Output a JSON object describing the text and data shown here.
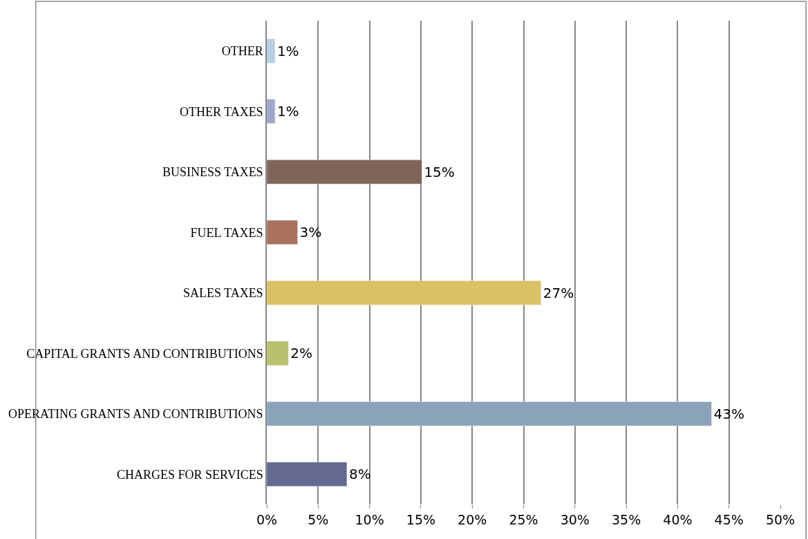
{
  "chart_data": {
    "type": "bar",
    "orientation": "horizontal",
    "categories": [
      "OTHER",
      "OTHER TAXES",
      "BUSINESS TAXES",
      "FUEL TAXES",
      "SALES TAXES",
      "CAPITAL GRANTS AND CONTRIBUTIONS",
      "OPERATING GRANTS AND CONTRIBUTIONS",
      "CHARGES FOR SERVICES"
    ],
    "values": [
      0.8,
      0.8,
      15.1,
      3.0,
      26.7,
      2.1,
      43.3,
      7.8
    ],
    "value_labels": [
      "1%",
      "1%",
      "15%",
      "3%",
      "27%",
      "2%",
      "43%",
      "8%"
    ],
    "colors": [
      "#b9cde5",
      "#a0a7c8",
      "#7f6459",
      "#a8725f",
      "#dcc066",
      "#b8c16b",
      "#8ba3b8",
      "#646a92"
    ],
    "xlim": [
      0,
      50
    ],
    "xticks": [
      {
        "value": 0,
        "label": "0%"
      },
      {
        "value": 5,
        "label": "5%"
      },
      {
        "value": 10,
        "label": "10%"
      },
      {
        "value": 15,
        "label": "15%"
      },
      {
        "value": 20,
        "label": "20%"
      },
      {
        "value": 25,
        "label": "25%"
      },
      {
        "value": 30,
        "label": "30%"
      },
      {
        "value": 35,
        "label": "35%"
      },
      {
        "value": 40,
        "label": "40%"
      },
      {
        "value": 45,
        "label": "45%"
      },
      {
        "value": 50,
        "label": "50%"
      }
    ],
    "grid": "x",
    "legend": false
  }
}
